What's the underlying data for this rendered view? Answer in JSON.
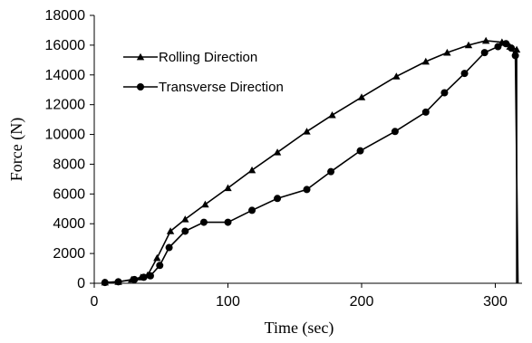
{
  "chart_data": {
    "type": "line",
    "title": "",
    "xlabel": "Time (sec)",
    "ylabel": "Force (N)",
    "xlim": [
      0,
      320
    ],
    "ylim": [
      0,
      18000
    ],
    "x_ticks": [
      0,
      100,
      200,
      300
    ],
    "y_ticks": [
      0,
      2000,
      4000,
      6000,
      8000,
      10000,
      12000,
      14000,
      16000,
      18000
    ],
    "grid": false,
    "legend_position": "upper-left",
    "series": [
      {
        "name": "Rolling Direction",
        "marker": "triangle",
        "color": "#000000",
        "x": [
          8,
          18,
          28,
          35,
          40,
          47,
          57,
          68,
          83,
          100,
          118,
          137,
          159,
          178,
          200,
          226,
          248,
          264,
          280,
          293,
          305,
          311,
          316,
          316
        ],
        "y": [
          60,
          100,
          250,
          400,
          550,
          1700,
          3500,
          4300,
          5300,
          6400,
          7600,
          8800,
          10200,
          11300,
          12500,
          13900,
          14900,
          15500,
          16000,
          16300,
          16200,
          15900,
          15700,
          0
        ]
      },
      {
        "name": "Transverse Direction",
        "marker": "circle",
        "color": "#000000",
        "x": [
          8,
          18,
          30,
          37,
          42,
          49,
          56,
          68,
          82,
          100,
          118,
          137,
          159,
          177,
          199,
          225,
          248,
          262,
          277,
          292,
          302,
          308,
          312,
          315,
          317
        ],
        "y": [
          50,
          100,
          250,
          400,
          500,
          1200,
          2400,
          3500,
          4100,
          4100,
          4900,
          5700,
          6300,
          7500,
          8900,
          10200,
          11500,
          12800,
          14100,
          15500,
          15900,
          16100,
          15800,
          15300,
          0
        ]
      }
    ]
  }
}
